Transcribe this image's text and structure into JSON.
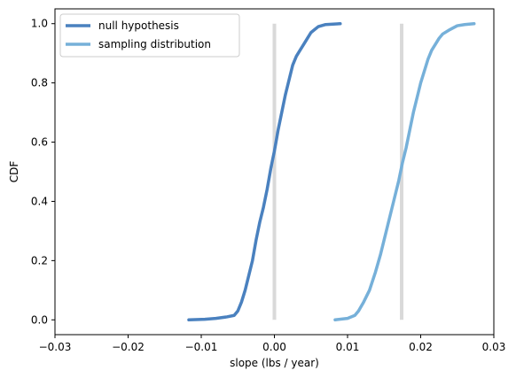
{
  "chart_data": {
    "type": "line",
    "xlabel": "slope (lbs / year)",
    "ylabel": "CDF",
    "xlim": [
      -0.03,
      0.03
    ],
    "ylim": [
      -0.05,
      1.05
    ],
    "x_ticks": [
      -0.03,
      -0.02,
      -0.01,
      0.0,
      0.01,
      0.02,
      0.03
    ],
    "x_tick_labels": [
      "−0.03",
      "−0.02",
      "−0.01",
      "0.00",
      "0.01",
      "0.02",
      "0.03"
    ],
    "y_ticks": [
      0.0,
      0.2,
      0.4,
      0.6,
      0.8,
      1.0
    ],
    "y_tick_labels": [
      "0.0",
      "0.2",
      "0.4",
      "0.6",
      "0.8",
      "1.0"
    ],
    "grid": false,
    "legend_position": "upper-left",
    "vertical_lines": [
      {
        "x": 0.0,
        "color": "#d9d9d9"
      },
      {
        "x": 0.0174,
        "color": "#d9d9d9"
      }
    ],
    "series": [
      {
        "name": "null hypothesis",
        "color": "#4a81bf",
        "x": [
          -0.0117,
          -0.0095,
          -0.008,
          -0.0065,
          -0.0055,
          -0.005,
          -0.0045,
          -0.004,
          -0.0035,
          -0.003,
          -0.0025,
          -0.002,
          -0.0015,
          -0.001,
          -0.0005,
          0.0,
          0.0005,
          0.001,
          0.0015,
          0.002,
          0.0025,
          0.003,
          0.0035,
          0.004,
          0.0045,
          0.005,
          0.0055,
          0.006,
          0.007,
          0.009
        ],
        "y": [
          0.0,
          0.002,
          0.005,
          0.01,
          0.015,
          0.03,
          0.06,
          0.1,
          0.15,
          0.2,
          0.27,
          0.33,
          0.38,
          0.44,
          0.51,
          0.57,
          0.64,
          0.7,
          0.76,
          0.81,
          0.86,
          0.89,
          0.91,
          0.93,
          0.95,
          0.97,
          0.98,
          0.99,
          0.997,
          1.0
        ]
      },
      {
        "name": "sampling distribution",
        "color": "#76b0d9",
        "x": [
          0.0083,
          0.01,
          0.011,
          0.0115,
          0.0122,
          0.013,
          0.0138,
          0.0145,
          0.015,
          0.0155,
          0.016,
          0.0165,
          0.017,
          0.0175,
          0.018,
          0.0185,
          0.019,
          0.0195,
          0.02,
          0.0205,
          0.021,
          0.0215,
          0.022,
          0.0225,
          0.023,
          0.024,
          0.025,
          0.026,
          0.0273
        ],
        "y": [
          0.0,
          0.005,
          0.015,
          0.03,
          0.06,
          0.1,
          0.16,
          0.22,
          0.27,
          0.32,
          0.37,
          0.42,
          0.47,
          0.53,
          0.58,
          0.64,
          0.7,
          0.75,
          0.8,
          0.84,
          0.88,
          0.91,
          0.93,
          0.95,
          0.965,
          0.98,
          0.993,
          0.997,
          1.0
        ]
      }
    ]
  }
}
